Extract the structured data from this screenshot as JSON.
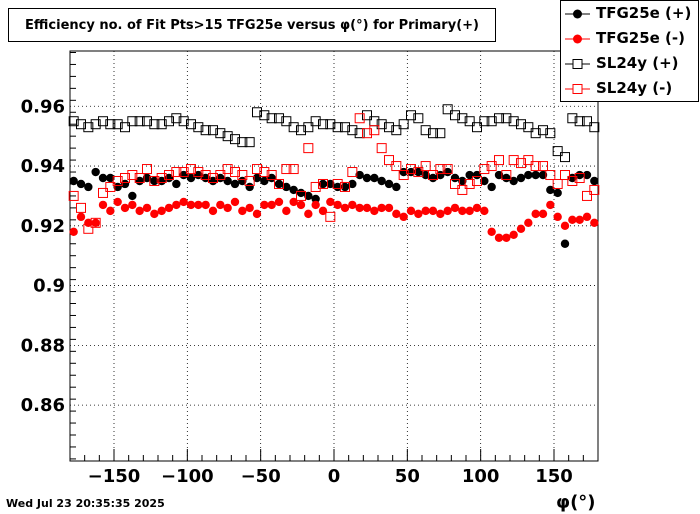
{
  "title": "Efficiency no. of Fit Pts>15 TFG25e versus φ(°) for Primary(+)",
  "timestamp": "Wed Jul 23 20:35:35 2025",
  "chart_data": {
    "type": "scatter",
    "xlabel": "φ(°)",
    "ylabel": "",
    "xlim": [
      -180,
      180
    ],
    "ylim": [
      0.8413,
      0.9785
    ],
    "xticks": [
      -150,
      -100,
      -50,
      0,
      50,
      100,
      150
    ],
    "xtick_labels": [
      "−150",
      "−100",
      "−50",
      "0",
      "50",
      "100",
      "150"
    ],
    "yticks": [
      0.86,
      0.88,
      0.9,
      0.92,
      0.94,
      0.96
    ],
    "ytick_labels": [
      "0.86",
      "0.88",
      "0.9",
      "0.92",
      "0.94",
      "0.96"
    ],
    "grid": true,
    "legend_position": "top-right",
    "x": [
      -177.5,
      -172.5,
      -167.5,
      -162.5,
      -157.5,
      -152.5,
      -147.5,
      -142.5,
      -137.5,
      -132.5,
      -127.5,
      -122.5,
      -117.5,
      -112.5,
      -107.5,
      -102.5,
      -97.5,
      -92.5,
      -87.5,
      -82.5,
      -77.5,
      -72.5,
      -67.5,
      -62.5,
      -57.5,
      -52.5,
      -47.5,
      -42.5,
      -37.5,
      -32.5,
      -27.5,
      -22.5,
      -17.5,
      -12.5,
      -7.5,
      -2.5,
      2.5,
      7.5,
      12.5,
      17.5,
      22.5,
      27.5,
      32.5,
      37.5,
      42.5,
      47.5,
      52.5,
      57.5,
      62.5,
      67.5,
      72.5,
      77.5,
      82.5,
      87.5,
      92.5,
      97.5,
      102.5,
      107.5,
      112.5,
      117.5,
      122.5,
      127.5,
      132.5,
      137.5,
      142.5,
      147.5,
      152.5,
      157.5,
      162.5,
      167.5,
      172.5,
      177.5
    ],
    "series": [
      {
        "name": "TFG25e (+)",
        "marker": "filled-circle",
        "color": "#000000",
        "values": [
          0.935,
          0.934,
          0.933,
          0.938,
          0.936,
          0.936,
          0.933,
          0.934,
          0.93,
          0.935,
          0.936,
          0.935,
          0.935,
          0.936,
          0.934,
          0.937,
          0.936,
          0.937,
          0.936,
          0.935,
          0.936,
          0.935,
          0.934,
          0.935,
          0.933,
          0.936,
          0.935,
          0.936,
          0.934,
          0.933,
          0.932,
          0.931,
          0.93,
          0.929,
          0.934,
          0.934,
          0.933,
          0.933,
          0.934,
          0.937,
          0.936,
          0.936,
          0.935,
          0.934,
          0.933,
          0.938,
          0.938,
          0.938,
          0.937,
          0.936,
          0.937,
          0.938,
          0.936,
          0.935,
          0.937,
          0.937,
          0.935,
          0.933,
          0.937,
          0.936,
          0.935,
          0.936,
          0.937,
          0.937,
          0.937,
          0.932,
          0.931,
          0.914,
          0.936,
          0.937,
          0.937,
          0.935
        ]
      },
      {
        "name": "TFG25e (-)",
        "marker": "filled-circle",
        "color": "#ff0000",
        "values": [
          0.918,
          0.923,
          0.921,
          0.921,
          0.927,
          0.925,
          0.928,
          0.926,
          0.927,
          0.925,
          0.926,
          0.924,
          0.925,
          0.926,
          0.927,
          0.928,
          0.927,
          0.927,
          0.927,
          0.925,
          0.927,
          0.926,
          0.928,
          0.925,
          0.926,
          0.924,
          0.927,
          0.927,
          0.928,
          0.925,
          0.928,
          0.927,
          0.924,
          0.927,
          0.925,
          0.928,
          0.927,
          0.926,
          0.927,
          0.926,
          0.926,
          0.925,
          0.926,
          0.926,
          0.924,
          0.923,
          0.925,
          0.924,
          0.925,
          0.925,
          0.924,
          0.925,
          0.926,
          0.925,
          0.925,
          0.926,
          0.925,
          0.918,
          0.916,
          0.916,
          0.917,
          0.919,
          0.921,
          0.924,
          0.924,
          0.927,
          0.923,
          0.92,
          0.922,
          0.922,
          0.923,
          0.921
        ]
      },
      {
        "name": "SL24y (+)",
        "marker": "open-square",
        "color": "#000000",
        "values": [
          0.955,
          0.954,
          0.953,
          0.954,
          0.955,
          0.954,
          0.954,
          0.953,
          0.955,
          0.955,
          0.955,
          0.954,
          0.954,
          0.955,
          0.956,
          0.955,
          0.954,
          0.953,
          0.952,
          0.952,
          0.951,
          0.95,
          0.949,
          0.948,
          0.948,
          0.958,
          0.957,
          0.956,
          0.956,
          0.955,
          0.953,
          0.952,
          0.953,
          0.955,
          0.954,
          0.954,
          0.953,
          0.953,
          0.952,
          0.951,
          0.957,
          0.955,
          0.954,
          0.953,
          0.952,
          0.954,
          0.957,
          0.956,
          0.952,
          0.951,
          0.951,
          0.959,
          0.957,
          0.956,
          0.955,
          0.953,
          0.955,
          0.955,
          0.956,
          0.956,
          0.955,
          0.954,
          0.953,
          0.951,
          0.952,
          0.951,
          0.945,
          0.943,
          0.956,
          0.955,
          0.955,
          0.953
        ]
      },
      {
        "name": "SL24y (-)",
        "marker": "open-square",
        "color": "#ff0000",
        "values": [
          0.93,
          0.926,
          0.919,
          0.921,
          0.931,
          0.933,
          0.935,
          0.936,
          0.937,
          0.936,
          0.939,
          0.935,
          0.936,
          0.937,
          0.938,
          0.938,
          0.939,
          0.938,
          0.937,
          0.936,
          0.937,
          0.939,
          0.938,
          0.937,
          0.935,
          0.939,
          0.938,
          0.937,
          0.934,
          0.939,
          0.939,
          0.93,
          0.946,
          0.933,
          0.934,
          0.923,
          0.934,
          0.933,
          0.938,
          0.956,
          0.951,
          0.952,
          0.946,
          0.942,
          0.94,
          0.937,
          0.939,
          0.938,
          0.94,
          0.937,
          0.939,
          0.939,
          0.934,
          0.932,
          0.934,
          0.935,
          0.939,
          0.94,
          0.942,
          0.937,
          0.942,
          0.941,
          0.942,
          0.94,
          0.94,
          0.937,
          0.934,
          0.937,
          0.935,
          0.936,
          0.93,
          0.932
        ]
      }
    ]
  }
}
